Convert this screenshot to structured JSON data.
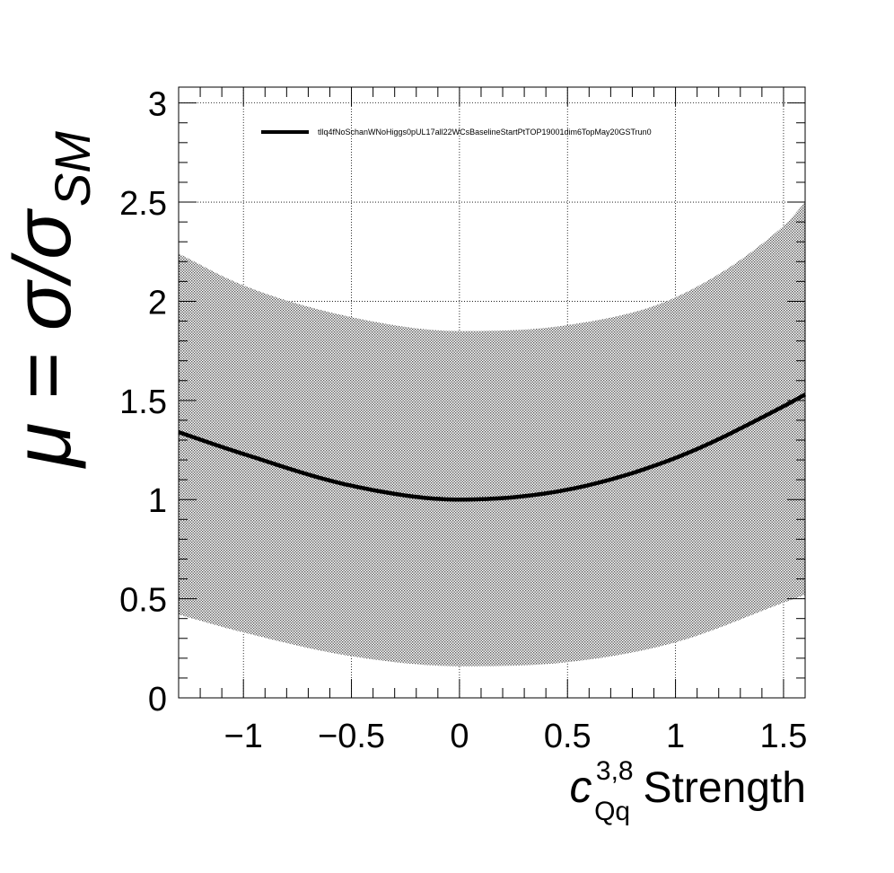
{
  "chart_data": {
    "type": "line",
    "title": "",
    "xlabel": {
      "base": "c",
      "superscript": "3,8",
      "subscript": "Qq",
      "suffix": "Strength"
    },
    "ylabel": {
      "lhs": "μ = σ/σ",
      "subscript": "SM"
    },
    "xlim": [
      -1.3,
      1.6
    ],
    "ylim": [
      0,
      3.08
    ],
    "x_ticks": [
      -1,
      -0.5,
      0,
      0.5,
      1,
      1.5
    ],
    "x_tick_labels": [
      "−1",
      "−0.5",
      "0",
      "0.5",
      "1",
      "1.5"
    ],
    "y_ticks": [
      0,
      0.5,
      1,
      1.5,
      2,
      2.5,
      3
    ],
    "y_tick_labels": [
      "0",
      "0.5",
      "1",
      "1.5",
      "2",
      "2.5",
      "3"
    ],
    "grid": true,
    "legend_position": "top-left",
    "series": [
      {
        "name": "tllq4fNoSchanWNoHiggs0pUL17all22WCsBaselineStartPtTOP19001dim6TopMay20GSTrun0",
        "color": "#000000",
        "x": [
          -1.3,
          -1.0,
          -0.5,
          0.0,
          0.5,
          1.0,
          1.5,
          1.6
        ],
        "y": [
          1.34,
          1.23,
          1.07,
          1.0,
          1.05,
          1.21,
          1.47,
          1.53
        ]
      }
    ],
    "uncertainty_band": {
      "fill": "hatched-dots",
      "color": "#555555",
      "x": [
        -1.3,
        -1.0,
        -0.5,
        0.0,
        0.5,
        1.0,
        1.5,
        1.6
      ],
      "upper": [
        2.24,
        2.08,
        1.92,
        1.85,
        1.88,
        2.02,
        2.38,
        2.5
      ],
      "lower": [
        0.42,
        0.33,
        0.21,
        0.16,
        0.18,
        0.28,
        0.48,
        0.52
      ]
    }
  }
}
